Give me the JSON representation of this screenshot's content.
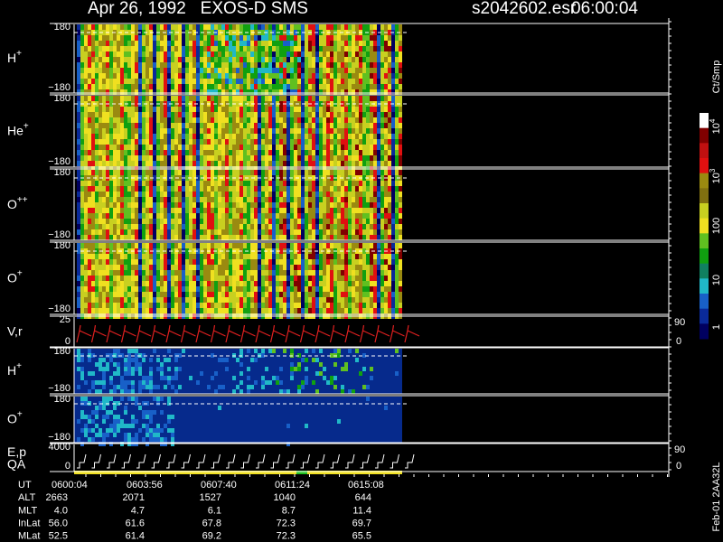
{
  "header": {
    "title": "Apr 26, 1992   EXOS-D SMS",
    "file": "s2042602.esr",
    "time": "06:00:04"
  },
  "panels": [
    {
      "label": "H",
      "sup": "+",
      "top": "180",
      "bottom": "−180"
    },
    {
      "label": "He",
      "sup": "+",
      "top": "180",
      "bottom": "−180"
    },
    {
      "label": "O",
      "sup": "++",
      "top": "180",
      "bottom": "−180"
    },
    {
      "label": "O",
      "sup": "+",
      "top": "180",
      "bottom": "−180"
    },
    {
      "label": "V,r",
      "top": "25",
      "bottom": "0",
      "right_top": "90",
      "right_bottom": "0"
    },
    {
      "label": "H",
      "sup": "+",
      "top": "180",
      "bottom": "−180"
    },
    {
      "label": "O",
      "sup": "+",
      "top": "180",
      "bottom": "−180"
    },
    {
      "label": "E,p",
      "label2": "QA",
      "top": "4000",
      "bottom": "0",
      "right_top": "90",
      "right_bottom": "0"
    }
  ],
  "colorbar": {
    "title": "Ct/Smp",
    "labels": [
      {
        "base": "10",
        "sup": "4"
      },
      {
        "base": "10",
        "sup": "3"
      },
      {
        "base": "100"
      },
      {
        "base": "10"
      },
      {
        "base": "1"
      }
    ]
  },
  "footer_id": "Feb-01 2AA32L",
  "table": {
    "rows": [
      [
        "UT",
        "0600:04",
        "0603:56",
        "0607:40",
        "0611:24",
        "0615:08"
      ],
      [
        "ALT",
        "2663",
        "2071",
        "1527",
        "1040",
        "644"
      ],
      [
        "MLT",
        "4.0",
        "4.7",
        "6.1",
        "8.7",
        "11.4"
      ],
      [
        "InLat",
        "56.0",
        "61.6",
        "67.8",
        "72.3",
        "69.7"
      ],
      [
        "MLat",
        "52.5",
        "61.4",
        "69.2",
        "72.3",
        "65.5"
      ]
    ]
  }
}
